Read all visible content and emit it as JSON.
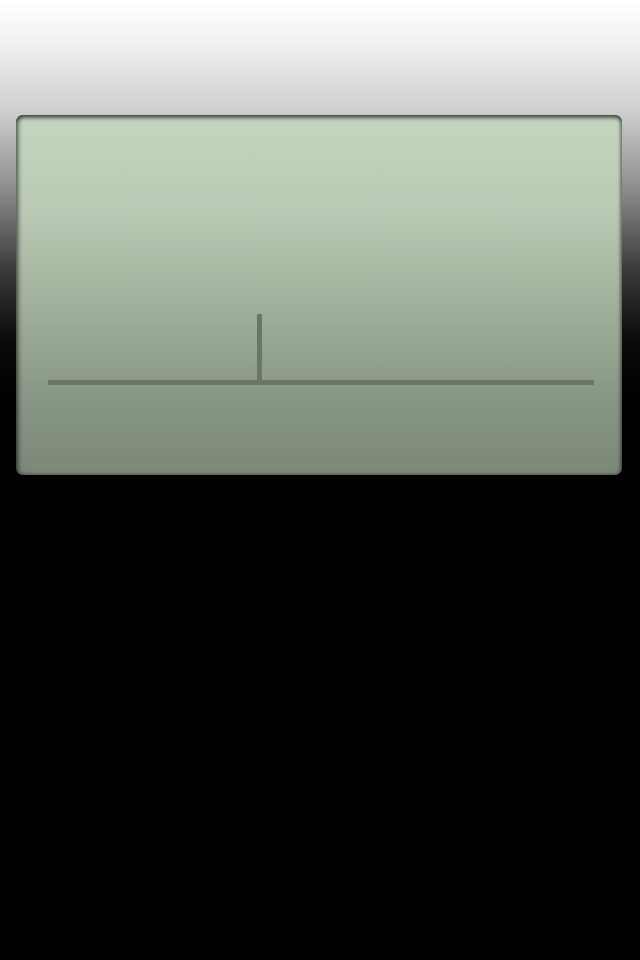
{
  "screen": {
    "colors": {
      "lcd_top": "#c5d6c0",
      "lcd_bottom": "#7b8877",
      "ink": "#6b7766",
      "page_background_top": "#ffffff",
      "page_background_bottom": "#000000"
    },
    "icons": {
      "cursor": "text-cursor-icon"
    }
  }
}
